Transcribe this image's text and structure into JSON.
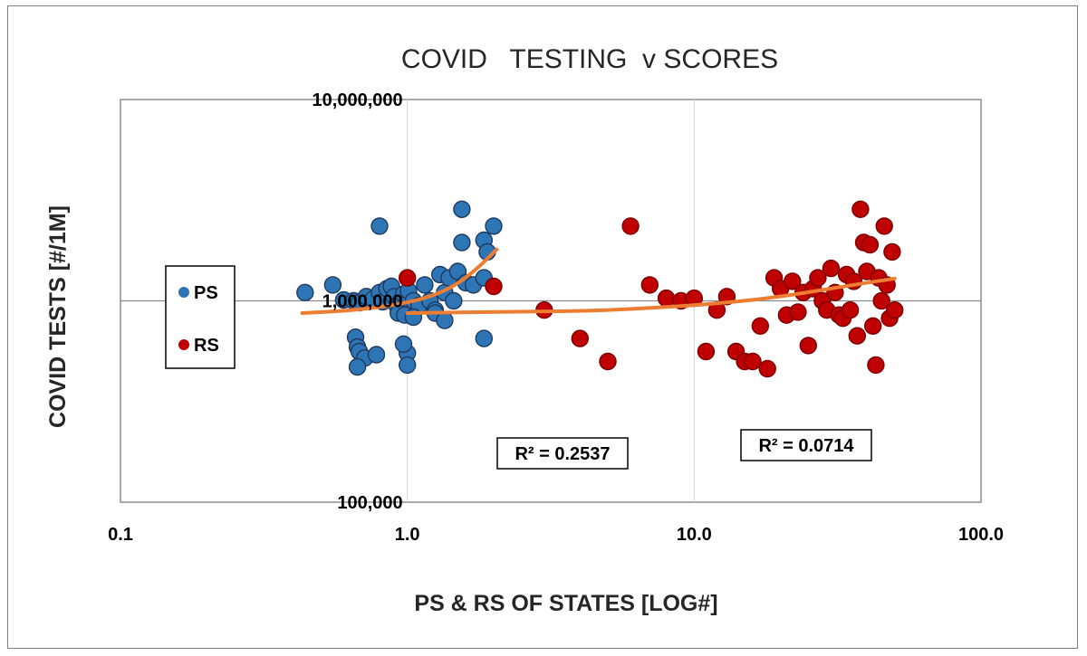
{
  "chart_data": {
    "type": "scatter",
    "title": "COVID   TESTING  v SCORES",
    "xlabel": "PS & RS OF STATES [LOG#]",
    "ylabel": "COVID TESTS [#/1M]",
    "x_scale": "log",
    "y_scale": "log",
    "xlim": [
      0.1,
      100
    ],
    "ylim": [
      100000,
      10000000
    ],
    "x_ticks": [
      {
        "value": 0.1,
        "label": "0.1"
      },
      {
        "value": 1,
        "label": "1.0"
      },
      {
        "value": 10,
        "label": "10.0"
      },
      {
        "value": 100,
        "label": "100.0"
      }
    ],
    "y_ticks": [
      {
        "value": 10000000,
        "label": "10,000,000"
      },
      {
        "value": 1000000,
        "label": "1,000,000"
      },
      {
        "value": 100000,
        "label": "100,000"
      }
    ],
    "grid": true,
    "legend_position": "left",
    "series": [
      {
        "name": "PS",
        "color": "#2e75b6",
        "edge": "#1f3a5f",
        "points": [
          [
            0.44,
            1100000
          ],
          [
            0.55,
            1200000
          ],
          [
            0.6,
            1010000
          ],
          [
            0.65,
            1000000
          ],
          [
            0.68,
            980000
          ],
          [
            0.72,
            1050000
          ],
          [
            0.76,
            1020000
          ],
          [
            0.8,
            1100000
          ],
          [
            0.82,
            990000
          ],
          [
            0.85,
            1150000
          ],
          [
            0.88,
            1180000
          ],
          [
            0.9,
            1050000
          ],
          [
            0.92,
            950000
          ],
          [
            0.95,
            1000000
          ],
          [
            0.97,
            1080000
          ],
          [
            0.99,
            960000
          ],
          [
            1.01,
            1120000
          ],
          [
            1.03,
            900000
          ],
          [
            1.05,
            1000000
          ],
          [
            1.1,
            950000
          ],
          [
            1.15,
            1200000
          ],
          [
            1.2,
            1000000
          ],
          [
            1.25,
            900000
          ],
          [
            1.3,
            1350000
          ],
          [
            1.35,
            1100000
          ],
          [
            1.4,
            1300000
          ],
          [
            1.45,
            1000000
          ],
          [
            1.5,
            1400000
          ],
          [
            1.6,
            1230000
          ],
          [
            1.7,
            1200000
          ],
          [
            0.93,
            870000
          ],
          [
            0.98,
            850000
          ],
          [
            1.05,
            830000
          ],
          [
            1.25,
            870000
          ],
          [
            1.35,
            800000
          ],
          [
            0.8,
            2350000
          ],
          [
            1.55,
            2850000
          ],
          [
            1.85,
            2000000
          ],
          [
            2.0,
            2350000
          ],
          [
            1.9,
            1750000
          ],
          [
            1.55,
            1950000
          ],
          [
            1.85,
            1300000
          ],
          [
            1.85,
            650000
          ],
          [
            1.0,
            550000
          ],
          [
            0.97,
            610000
          ],
          [
            0.66,
            660000
          ],
          [
            0.67,
            590000
          ],
          [
            0.68,
            560000
          ],
          [
            0.71,
            520000
          ],
          [
            0.78,
            540000
          ],
          [
            1.0,
            480000
          ],
          [
            0.67,
            470000
          ]
        ]
      },
      {
        "name": "RS",
        "color": "#c00000",
        "edge": "#7a0000",
        "points": [
          [
            1.0,
            1300000
          ],
          [
            2.0,
            1180000
          ],
          [
            3.0,
            900000
          ],
          [
            4.0,
            650000
          ],
          [
            5.0,
            500000
          ],
          [
            6.0,
            2350000
          ],
          [
            7.0,
            1200000
          ],
          [
            8.0,
            1030000
          ],
          [
            9.0,
            1000000
          ],
          [
            10.0,
            1030000
          ],
          [
            11.0,
            560000
          ],
          [
            12.0,
            900000
          ],
          [
            13.0,
            1050000
          ],
          [
            14.0,
            560000
          ],
          [
            15.0,
            500000
          ],
          [
            16.0,
            500000
          ],
          [
            17.0,
            750000
          ],
          [
            18.0,
            460000
          ],
          [
            19.0,
            1300000
          ],
          [
            20.0,
            1150000
          ],
          [
            21.0,
            850000
          ],
          [
            22.0,
            1250000
          ],
          [
            23.0,
            880000
          ],
          [
            24.0,
            1100000
          ],
          [
            25.0,
            600000
          ],
          [
            26.0,
            1150000
          ],
          [
            27.0,
            1300000
          ],
          [
            28.0,
            1000000
          ],
          [
            29.0,
            900000
          ],
          [
            30.0,
            1450000
          ],
          [
            31.0,
            1100000
          ],
          [
            32.0,
            850000
          ],
          [
            33.0,
            820000
          ],
          [
            34.0,
            1350000
          ],
          [
            35.0,
            900000
          ],
          [
            36.0,
            1250000
          ],
          [
            37.0,
            670000
          ],
          [
            38.0,
            2850000
          ],
          [
            39.0,
            1950000
          ],
          [
            40.0,
            1400000
          ],
          [
            41.0,
            1900000
          ],
          [
            42.0,
            750000
          ],
          [
            43.0,
            480000
          ],
          [
            44.0,
            1300000
          ],
          [
            45.0,
            1000000
          ],
          [
            46.0,
            2350000
          ],
          [
            47.0,
            1200000
          ],
          [
            48.0,
            820000
          ],
          [
            49.0,
            1750000
          ],
          [
            50.0,
            900000
          ]
        ]
      }
    ],
    "trendlines": [
      {
        "series": "PS",
        "type": "polynomial",
        "color": "#ed7d31",
        "points": [
          [
            0.43,
            870000
          ],
          [
            0.6,
            890000
          ],
          [
            0.8,
            930000
          ],
          [
            1.0,
            980000
          ],
          [
            1.2,
            1050000
          ],
          [
            1.4,
            1150000
          ],
          [
            1.6,
            1300000
          ],
          [
            1.8,
            1500000
          ],
          [
            2.05,
            1800000
          ]
        ],
        "r2_label": "R² = 0.2537"
      },
      {
        "series": "RS",
        "type": "polynomial",
        "color": "#ed7d31",
        "points": [
          [
            1.0,
            870000
          ],
          [
            2.0,
            880000
          ],
          [
            4.0,
            890000
          ],
          [
            6.0,
            910000
          ],
          [
            10.0,
            950000
          ],
          [
            15.0,
            1000000
          ],
          [
            20.0,
            1050000
          ],
          [
            30.0,
            1150000
          ],
          [
            40.0,
            1230000
          ],
          [
            50.0,
            1290000
          ]
        ],
        "r2_label": "R² = 0.0714"
      }
    ]
  }
}
